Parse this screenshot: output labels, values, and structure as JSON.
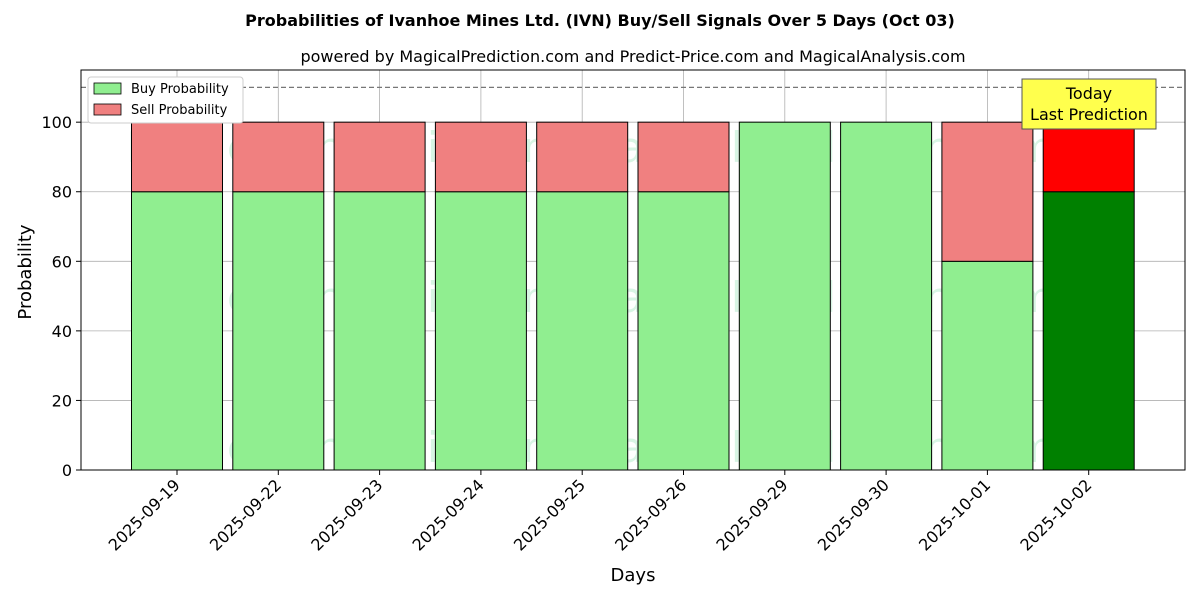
{
  "chart_data": {
    "type": "bar",
    "stacked": true,
    "title": "Probabilities of Ivanhoe Mines Ltd. (IVN) Buy/Sell Signals Over 5 Days (Oct 03)",
    "subtitle": "powered by MagicalPrediction.com and Predict-Price.com and MagicalAnalysis.com",
    "xlabel": "Days",
    "ylabel": "Probability",
    "ylim": [
      0,
      115
    ],
    "yticks": [
      0,
      20,
      40,
      60,
      80,
      100
    ],
    "grid": true,
    "legend_position": "top-left",
    "reference_line": 110,
    "categories": [
      "2025-09-19",
      "2025-09-22",
      "2025-09-23",
      "2025-09-24",
      "2025-09-25",
      "2025-09-26",
      "2025-09-29",
      "2025-09-30",
      "2025-10-01",
      "2025-10-02"
    ],
    "series": [
      {
        "name": "Buy Probability",
        "values": [
          80,
          80,
          80,
          80,
          80,
          80,
          100,
          100,
          60,
          80
        ],
        "color": "#90ee90",
        "highlight_color": "#008000"
      },
      {
        "name": "Sell Probability",
        "values": [
          20,
          20,
          20,
          20,
          20,
          20,
          0,
          0,
          40,
          20
        ],
        "color": "#f08080",
        "highlight_color": "#ff0000"
      }
    ],
    "highlight_index": 9,
    "annotation": {
      "line1": "Today",
      "line2": "Last Prediction",
      "background": "#ffff4d"
    },
    "watermarks": [
      "MagicalAnalysis.com",
      "MagicalPrediction.com"
    ]
  }
}
